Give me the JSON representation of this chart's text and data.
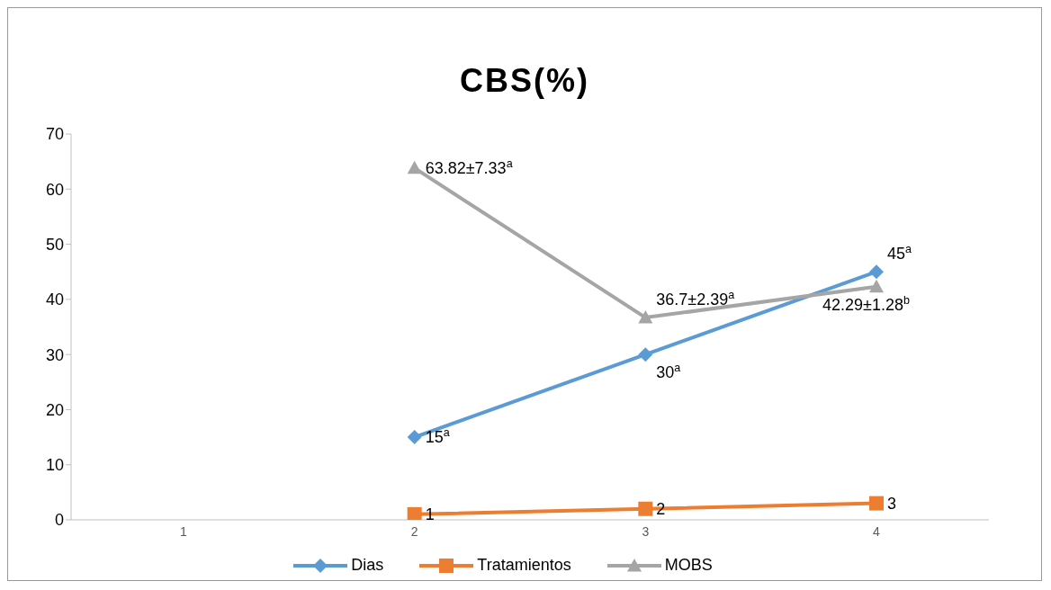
{
  "chart_data": {
    "type": "line",
    "title": "CBS(%)",
    "categories": [
      "1",
      "2",
      "3",
      "4"
    ],
    "series": [
      {
        "name": "Dias",
        "color": "#5b9bd5",
        "marker": "diamond",
        "values": [
          null,
          15,
          30,
          45
        ],
        "value_labels": [
          null,
          "15$^{a}$",
          "30$^{a}$",
          "45$^{a}$"
        ]
      },
      {
        "name": "Tratamientos",
        "color": "#ed7d31",
        "marker": "square",
        "values": [
          null,
          1,
          2,
          3
        ],
        "value_labels": [
          null,
          "1",
          "2",
          "3"
        ]
      },
      {
        "name": "MOBS",
        "color": "#a5a5a5",
        "marker": "triangle",
        "values": [
          null,
          63.82,
          36.7,
          42.29
        ],
        "value_labels": [
          null,
          "63.82±7.33$^{a}$",
          "36.7±2.39$^{a}$",
          "42.29±1.28$^{b}$"
        ]
      }
    ],
    "ylim": [
      0,
      70
    ],
    "yticks": [
      0,
      10,
      20,
      30,
      40,
      50,
      60,
      70
    ],
    "grid": false,
    "legend": "bottom"
  }
}
